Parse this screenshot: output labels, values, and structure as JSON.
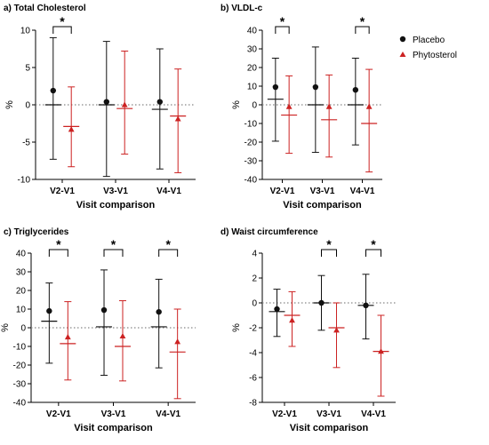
{
  "colors": {
    "placebo": "#111111",
    "phytosterol": "#cc2222",
    "zero_line": "#888888"
  },
  "legend": {
    "placement": "right",
    "items": [
      {
        "label": "Placebo",
        "marker": "circle",
        "color": "#111111"
      },
      {
        "label": "Phytosterol",
        "marker": "triangle",
        "color": "#cc2222"
      }
    ]
  },
  "chart_data": [
    {
      "type": "scatter",
      "title": "a) Total Cholesterol",
      "xlabel": "Visit comparison",
      "ylabel": "%",
      "categories": [
        "V2-V1",
        "V3-V1",
        "V4-V1"
      ],
      "ylim": [
        -10,
        10
      ],
      "yticks": [
        10,
        5,
        0,
        -5,
        -10
      ],
      "grid": false,
      "zero_line": true,
      "series": [
        {
          "name": "Placebo",
          "mean": [
            1.9,
            0.4,
            0.4
          ],
          "median": [
            0,
            0,
            -0.6
          ],
          "low": [
            -7.3,
            -9.6,
            -8.6
          ],
          "high": [
            9.0,
            8.5,
            7.5
          ]
        },
        {
          "name": "Phytosterol",
          "mean": [
            -3.3,
            0,
            -1.9
          ],
          "median": [
            -2.9,
            -0.5,
            -1.5
          ],
          "low": [
            -8.3,
            -6.6,
            -9.1
          ],
          "high": [
            2.4,
            7.2,
            4.8
          ]
        }
      ],
      "significance": [
        {
          "category": "V2-V1",
          "label": "*"
        }
      ]
    },
    {
      "type": "scatter",
      "title": "b) VLDL-c",
      "xlabel": "Visit comparison",
      "ylabel": "%",
      "categories": [
        "V2-V1",
        "V3-V1",
        "V4-V1"
      ],
      "ylim": [
        -40,
        40
      ],
      "yticks": [
        40,
        30,
        20,
        10,
        0,
        -10,
        -20,
        -30,
        -40
      ],
      "grid": false,
      "zero_line": true,
      "series": [
        {
          "name": "Placebo",
          "mean": [
            9.5,
            9.5,
            8.0
          ],
          "median": [
            3.0,
            0,
            0
          ],
          "low": [
            -19.5,
            -25.5,
            -21.5
          ],
          "high": [
            25.0,
            31.0,
            25.0
          ]
        },
        {
          "name": "Phytosterol",
          "mean": [
            -1.0,
            -1.0,
            -1.0
          ],
          "median": [
            -5.5,
            -8.0,
            -10.0
          ],
          "low": [
            -26.0,
            -28.0,
            -36.0
          ],
          "high": [
            15.5,
            16.0,
            19.0
          ]
        }
      ],
      "significance": [
        {
          "category": "V2-V1",
          "label": "*"
        },
        {
          "category": "V4-V1",
          "label": "*"
        }
      ]
    },
    {
      "type": "scatter",
      "title": "c) Triglycerides",
      "xlabel": "Visit comparison",
      "ylabel": "%",
      "categories": [
        "V2-V1",
        "V3-V1",
        "V4-V1"
      ],
      "ylim": [
        -40,
        40
      ],
      "yticks": [
        40,
        30,
        20,
        10,
        0,
        -10,
        -20,
        -30,
        -40
      ],
      "grid": false,
      "zero_line": true,
      "series": [
        {
          "name": "Placebo",
          "mean": [
            9.0,
            9.5,
            8.5
          ],
          "median": [
            3.5,
            0.5,
            0.5
          ],
          "low": [
            -19.0,
            -25.5,
            -21.5
          ],
          "high": [
            24.0,
            31.0,
            26.0
          ]
        },
        {
          "name": "Phytosterol",
          "mean": [
            -5.0,
            -4.5,
            -7.5
          ],
          "median": [
            -8.5,
            -10.0,
            -13.0
          ],
          "low": [
            -28.0,
            -28.5,
            -38.0
          ],
          "high": [
            14.0,
            14.5,
            10.0
          ]
        }
      ],
      "significance": [
        {
          "category": "V2-V1",
          "label": "*"
        },
        {
          "category": "V3-V1",
          "label": "*"
        },
        {
          "category": "V4-V1",
          "label": "*"
        }
      ]
    },
    {
      "type": "scatter",
      "title": "d) Waist circumference",
      "xlabel": "Visit comparison",
      "ylabel": "%",
      "categories": [
        "V2-V1",
        "V3-V1",
        "V4-V1"
      ],
      "ylim": [
        -8,
        4
      ],
      "yticks": [
        4,
        2,
        0,
        -2,
        -4,
        -6,
        -8
      ],
      "grid": false,
      "zero_line": true,
      "series": [
        {
          "name": "Placebo",
          "mean": [
            -0.5,
            0,
            -0.2
          ],
          "median": [
            -0.7,
            0,
            -0.2
          ],
          "low": [
            -2.7,
            -2.2,
            -2.9
          ],
          "high": [
            1.1,
            2.2,
            2.3
          ]
        },
        {
          "name": "Phytosterol",
          "mean": [
            -1.4,
            -2.2,
            -3.9
          ],
          "median": [
            -1.0,
            -2.0,
            -3.9
          ],
          "low": [
            -3.5,
            -5.2,
            -7.5
          ],
          "high": [
            0.9,
            0.0,
            -1.0
          ]
        }
      ],
      "significance": [
        {
          "category": "V3-V1",
          "label": "*"
        },
        {
          "category": "V4-V1",
          "label": "*"
        }
      ]
    }
  ]
}
